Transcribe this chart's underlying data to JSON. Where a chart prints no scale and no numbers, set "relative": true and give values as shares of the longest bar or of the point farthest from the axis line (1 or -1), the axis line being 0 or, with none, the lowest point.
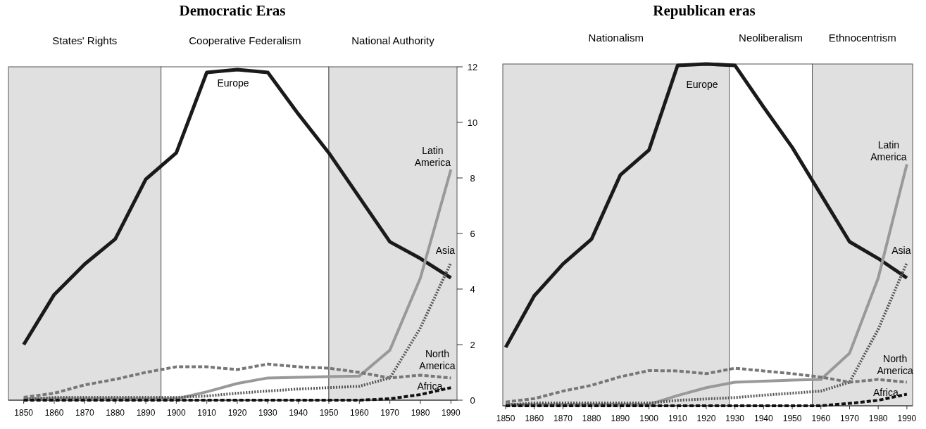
{
  "chart_data": [
    {
      "type": "line",
      "title": "Democratic Eras",
      "x": [
        1850,
        1860,
        1870,
        1880,
        1890,
        1900,
        1910,
        1920,
        1930,
        1940,
        1950,
        1960,
        1970,
        1980,
        1990
      ],
      "xlim": [
        1845,
        1992
      ],
      "xticks": [
        1850,
        1860,
        1870,
        1880,
        1890,
        1900,
        1910,
        1920,
        1930,
        1940,
        1950,
        1960,
        1970,
        1980,
        1990
      ],
      "ylim": [
        0,
        12
      ],
      "yticks": [
        0,
        2,
        4,
        6,
        8,
        10,
        12
      ],
      "series": [
        {
          "name": "Europe",
          "color": "#1a1a1a",
          "values": [
            2.0,
            3.8,
            4.9,
            5.8,
            7.95,
            8.9,
            11.8,
            11.9,
            11.8,
            10.3,
            8.9,
            7.3,
            5.7,
            5.1,
            4.4
          ]
        },
        {
          "name": "Latin America",
          "color": "#999999",
          "values": [
            0.05,
            0.05,
            0.05,
            0.05,
            0.05,
            0.05,
            0.3,
            0.6,
            0.8,
            0.82,
            0.85,
            0.87,
            1.8,
            4.4,
            8.3
          ]
        },
        {
          "name": "Asia",
          "color": "#555555",
          "line_style": "dotted",
          "values": [
            0.02,
            0.1,
            0.1,
            0.1,
            0.1,
            0.1,
            0.15,
            0.25,
            0.33,
            0.4,
            0.45,
            0.5,
            0.8,
            2.6,
            4.95
          ]
        },
        {
          "name": "North America",
          "color": "#777777",
          "line_style": "dashed",
          "values": [
            0.1,
            0.25,
            0.55,
            0.75,
            1.0,
            1.2,
            1.2,
            1.1,
            1.3,
            1.2,
            1.15,
            1.0,
            0.8,
            0.9,
            0.8
          ]
        },
        {
          "name": "Africa",
          "color": "#111111",
          "line_style": "dashed",
          "values": [
            0,
            0,
            0,
            0,
            0,
            0,
            0,
            0,
            0,
            0,
            0,
            0,
            0.05,
            0.2,
            0.45
          ]
        }
      ],
      "bands": [
        {
          "axis": "x",
          "from": 1845,
          "to": 1895,
          "label": "States' Rights",
          "color": "#e0e0e0"
        },
        {
          "axis": "x",
          "from": 1895,
          "to": 1950,
          "label": "Cooperative Federalism",
          "color": "#ffffff"
        },
        {
          "axis": "x",
          "from": 1950,
          "to": 1992,
          "label": "National Authority",
          "color": "#e0e0e0"
        }
      ]
    },
    {
      "type": "line",
      "title": "Republican eras",
      "relative": true,
      "x": [
        1850,
        1860,
        1870,
        1880,
        1890,
        1900,
        1910,
        1920,
        1930,
        1940,
        1950,
        1960,
        1970,
        1980,
        1990
      ],
      "xlim": [
        1849,
        1992
      ],
      "xticks": [
        1850,
        1860,
        1870,
        1880,
        1890,
        1900,
        1910,
        1920,
        1930,
        1940,
        1950,
        1960,
        1970,
        1980,
        1990
      ],
      "series": [
        {
          "name": "Europe",
          "color": "#1a1a1a",
          "values": [
            0.171,
            0.322,
            0.415,
            0.488,
            0.675,
            0.748,
            0.996,
            1,
            0.996,
            0.874,
            0.756,
            0.618,
            0.48,
            0.431,
            0.374
          ]
        },
        {
          "name": "Latin America",
          "color": "#999999",
          "values": [
            0.004,
            0.004,
            0.004,
            0.004,
            0.004,
            0.004,
            0.03,
            0.053,
            0.069,
            0.072,
            0.075,
            0.077,
            0.154,
            0.374,
            0.707
          ]
        },
        {
          "name": "Asia",
          "color": "#555555",
          "line_style": "dotted",
          "values": [
            0.002,
            0.008,
            0.008,
            0.008,
            0.008,
            0.008,
            0.016,
            0.02,
            0.024,
            0.031,
            0.037,
            0.043,
            0.069,
            0.224,
            0.419
          ]
        },
        {
          "name": "North America",
          "color": "#777777",
          "line_style": "dashed",
          "values": [
            0.011,
            0.021,
            0.043,
            0.06,
            0.085,
            0.103,
            0.102,
            0.094,
            0.11,
            0.102,
            0.094,
            0.084,
            0.069,
            0.077,
            0.069
          ]
        },
        {
          "name": "Africa",
          "color": "#111111",
          "line_style": "dashed",
          "values": [
            0,
            0,
            0,
            0,
            0,
            0,
            0,
            0,
            0,
            0,
            0,
            0,
            0.007,
            0.016,
            0.034
          ]
        }
      ],
      "bands": [
        {
          "axis": "x",
          "from": 1849,
          "to": 1928,
          "label": "Nationalism",
          "color": "#e0e0e0"
        },
        {
          "axis": "x",
          "from": 1928,
          "to": 1957,
          "label": "Neoliberalism",
          "color": "#ffffff"
        },
        {
          "axis": "x",
          "from": 1957,
          "to": 1992,
          "label": "Ethnocentrism",
          "color": "#e0e0e0"
        }
      ]
    }
  ]
}
